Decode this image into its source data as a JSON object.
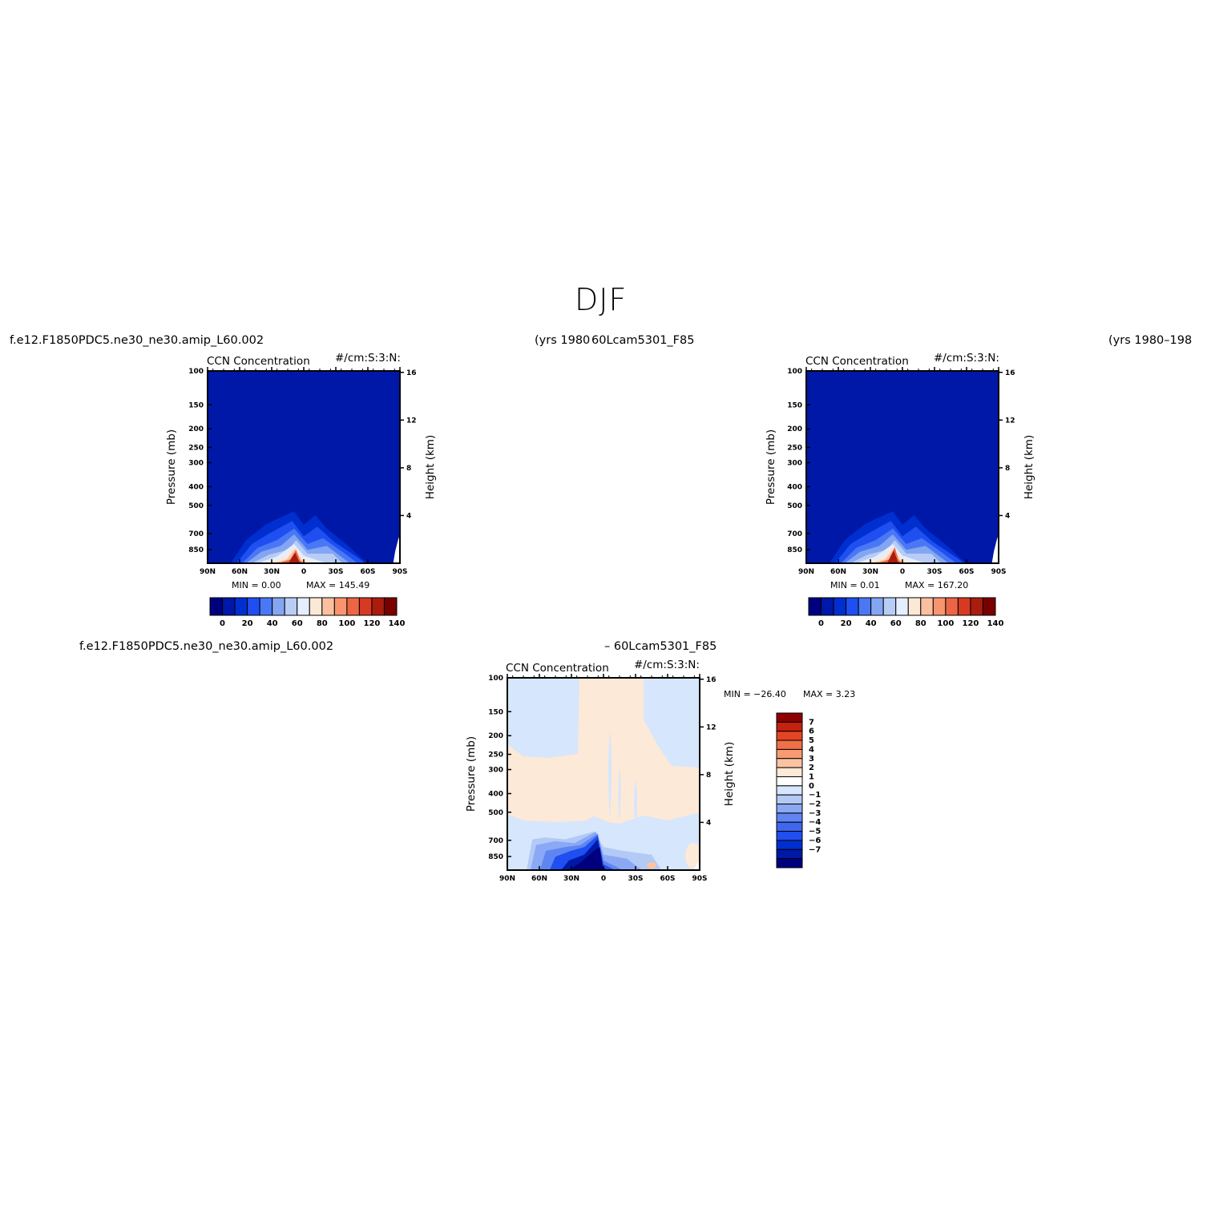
{
  "figure": {
    "title": "DJF",
    "case_a_label": "f.e12.F1850PDC5.ne30_ne30.amip_L60.002",
    "case_a_years": "(yrs 1980",
    "case_b_label": "60Lcam5301_F85",
    "case_b_years": "(yrs 1980–198",
    "diff_label_a": "f.e12.F1850PDC5.ne30_ne30.amip_L60.002",
    "diff_label_b": "– 60Lcam5301_F85"
  },
  "colors": {
    "scale14": [
      "#00007f",
      "#0018a8",
      "#002fd0",
      "#1f4ff0",
      "#4a78f5",
      "#84a6f2",
      "#b7cdf6",
      "#e5eefc",
      "#fde8d6",
      "#fcbf9f",
      "#f7956e",
      "#ec6544",
      "#d63a20",
      "#a91c0e",
      "#7a0000"
    ],
    "diff": [
      "#00007f",
      "#0018a8",
      "#002fd0",
      "#1f4ff0",
      "#3f66f0",
      "#5f85f2",
      "#8aa8f4",
      "#b3c9f6",
      "#d6e6fc",
      "#ffffff",
      "#fde9d8",
      "#fcc3a3",
      "#f99a73",
      "#f07048",
      "#e34524",
      "#c4210f",
      "#8e0000"
    ]
  },
  "panels": [
    {
      "title_left": "CCN Concentration",
      "title_right": "#/cm:S:3:N:",
      "ylabel": "Pressure (mb)",
      "ylabel_right": "Height (km)",
      "min_text": "MIN =    0.00",
      "max_text": "MAX =  145.49",
      "cbar_labels": [
        "0",
        "20",
        "40",
        "60",
        "80",
        "100",
        "120",
        "140"
      ]
    },
    {
      "title_left": "CCN Concentration",
      "title_right": "#/cm:S:3:N:",
      "ylabel": "Pressure (mb)",
      "ylabel_right": "Height (km)",
      "min_text": "MIN =    0.01",
      "max_text": "MAX =  167.20",
      "cbar_labels": [
        "0",
        "20",
        "40",
        "60",
        "80",
        "100",
        "120",
        "140"
      ]
    },
    {
      "title_left": "CCN Concentration",
      "title_right": "#/cm:S:3:N:",
      "ylabel": "Pressure (mb)",
      "ylabel_right": "Height (km)",
      "min_text": "MIN = −26.40",
      "max_text": "MAX =    3.23",
      "cbar_labels": [
        "7",
        "6",
        "5",
        "4",
        "3",
        "2",
        "1",
        "0",
        "−1",
        "−2",
        "−3",
        "−4",
        "−5",
        "−6",
        "−7"
      ]
    }
  ],
  "chart_data": [
    {
      "type": "heatmap",
      "title": "CCN Concentration",
      "units": "#/cm:S:3:N:",
      "x_ticks": [
        "90N",
        "60N",
        "30N",
        "0",
        "30S",
        "60S",
        "90S"
      ],
      "y_ticks": [
        "100",
        "150",
        "200",
        "250",
        "300",
        "400",
        "500",
        "700",
        "850"
      ],
      "y2_ticks": [
        "16",
        "12",
        "8",
        "4"
      ],
      "xlabel": "",
      "ylabel": "Pressure (mb)",
      "y2label": "Height (km)",
      "min": 0.0,
      "max": 145.49,
      "levels": [
        0,
        10,
        20,
        30,
        40,
        50,
        60,
        70,
        80,
        90,
        100,
        110,
        120,
        130,
        140
      ]
    },
    {
      "type": "heatmap",
      "title": "CCN Concentration",
      "units": "#/cm:S:3:N:",
      "x_ticks": [
        "90N",
        "60N",
        "30N",
        "0",
        "30S",
        "60S",
        "90S"
      ],
      "y_ticks": [
        "100",
        "150",
        "200",
        "250",
        "300",
        "400",
        "500",
        "700",
        "850"
      ],
      "y2_ticks": [
        "16",
        "12",
        "8",
        "4"
      ],
      "xlabel": "",
      "ylabel": "Pressure (mb)",
      "y2label": "Height (km)",
      "min": 0.01,
      "max": 167.2,
      "levels": [
        0,
        10,
        20,
        30,
        40,
        50,
        60,
        70,
        80,
        90,
        100,
        110,
        120,
        130,
        140
      ]
    },
    {
      "type": "heatmap",
      "title": "CCN Concentration",
      "units": "#/cm:S:3:N:",
      "x_ticks": [
        "90N",
        "60N",
        "30N",
        "0",
        "30S",
        "60S",
        "90S"
      ],
      "y_ticks": [
        "100",
        "150",
        "200",
        "250",
        "300",
        "400",
        "500",
        "700",
        "850"
      ],
      "y2_ticks": [
        "16",
        "12",
        "8",
        "4"
      ],
      "xlabel": "",
      "ylabel": "Pressure (mb)",
      "y2label": "Height (km)",
      "min": -26.4,
      "max": 3.23,
      "levels": [
        -7,
        -6,
        -5,
        -4,
        -3,
        -2,
        -1,
        0,
        1,
        2,
        3,
        4,
        5,
        6,
        7
      ]
    }
  ]
}
